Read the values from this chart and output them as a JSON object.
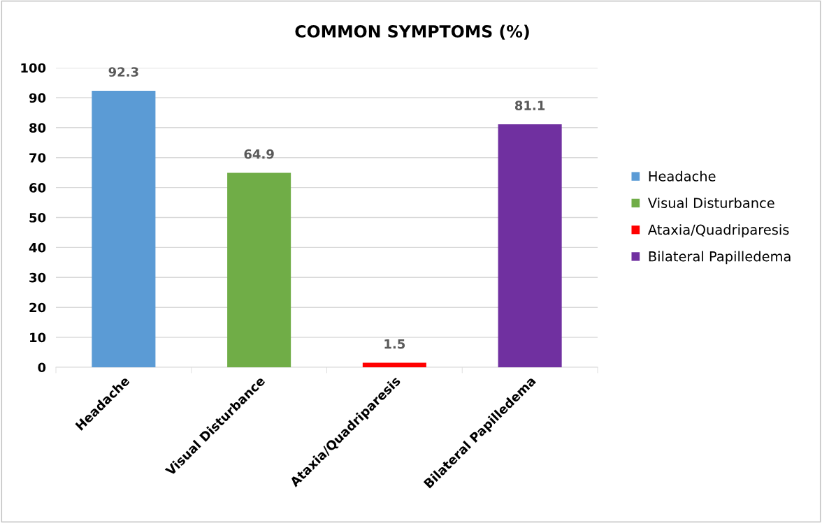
{
  "chart_data": {
    "type": "bar",
    "title": "COMMON SYMPTOMS (%)",
    "categories": [
      "Headache",
      "Visual Disturbance",
      "Ataxia/Quadriparesis",
      "Bilateral Papilledema"
    ],
    "series": [
      {
        "name": "Headache",
        "color": "#5b9bd5",
        "values": [
          92.3,
          null,
          null,
          null
        ]
      },
      {
        "name": "Visual Disturbance",
        "color": "#70ad47",
        "values": [
          null,
          64.9,
          null,
          null
        ]
      },
      {
        "name": "Ataxia/Quadriparesis",
        "color": "#ff0000",
        "values": [
          null,
          null,
          1.5,
          null
        ]
      },
      {
        "name": "Bilateral Papilledema",
        "color": "#7030a0",
        "values": [
          null,
          null,
          null,
          81.1
        ]
      }
    ],
    "ylim": [
      0,
      100
    ],
    "yticks": [
      0,
      10,
      20,
      30,
      40,
      50,
      60,
      70,
      80,
      90,
      100
    ],
    "grid": "y",
    "legend": "right",
    "data_labels": true
  }
}
